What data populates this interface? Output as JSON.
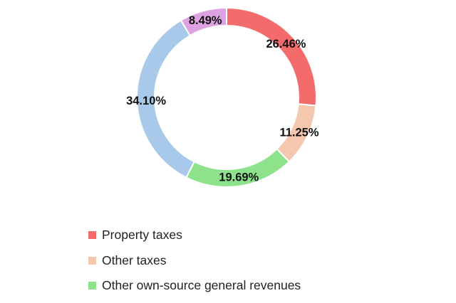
{
  "chart_data": {
    "type": "pie",
    "donut": true,
    "start": "top",
    "direction": "clockwise",
    "slices": [
      {
        "name": "Property taxes",
        "value": 26.46,
        "label": "26.46%",
        "color": "#f36b6b"
      },
      {
        "name": "Other taxes",
        "value": 11.25,
        "label": "11.25%",
        "color": "#f5c7ae"
      },
      {
        "name": "Other own-source general revenues",
        "value": 19.69,
        "label": "19.69%",
        "color": "#8fe28c"
      },
      {
        "name": "",
        "value": 34.1,
        "label": "34.10%",
        "color": "#a9c9ea"
      },
      {
        "name": "",
        "value": 8.49,
        "label": "8.49%",
        "color": "#dda2e1"
      }
    ],
    "legend": [
      {
        "label": "Property taxes",
        "color": "#f36b6b"
      },
      {
        "label": "Other taxes",
        "color": "#f5c7ae"
      },
      {
        "label": "Other own-source general revenues",
        "color": "#8fe28c"
      }
    ],
    "legend_placement": "bottom"
  }
}
